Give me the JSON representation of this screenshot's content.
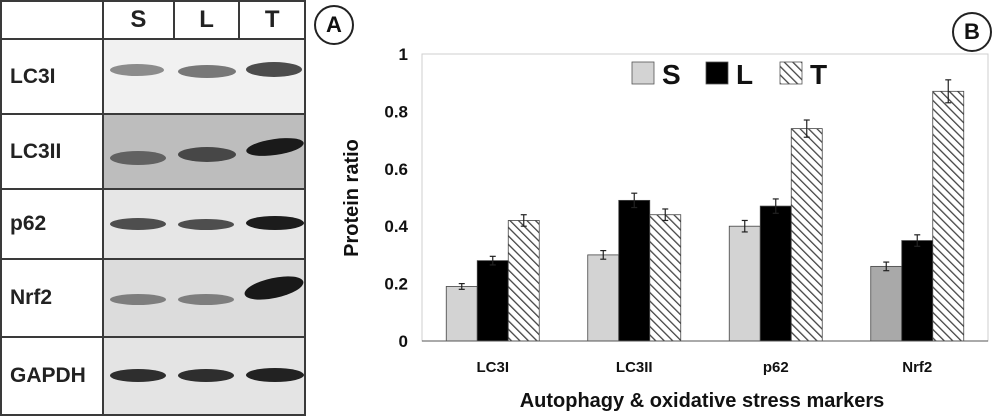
{
  "panel_a": {
    "letter": "A",
    "columns": [
      "S",
      "L",
      "T"
    ],
    "rows": [
      "LC3I",
      "LC3II",
      "p62",
      "Nrf2",
      "GAPDH"
    ]
  },
  "panel_b": {
    "letter": "B"
  },
  "chart_data": {
    "type": "bar",
    "categories": [
      "LC3I",
      "LC3II",
      "p62",
      "Nrf2"
    ],
    "series": [
      {
        "name": "S",
        "values": [
          0.19,
          0.3,
          0.4,
          0.26
        ],
        "errors": [
          0.01,
          0.015,
          0.02,
          0.015
        ],
        "color": "#d3d3d3",
        "fill": "solid"
      },
      {
        "name": "L",
        "values": [
          0.28,
          0.49,
          0.47,
          0.35
        ],
        "errors": [
          0.015,
          0.025,
          0.025,
          0.02
        ],
        "color": "#000000",
        "fill": "solid"
      },
      {
        "name": "T",
        "values": [
          0.42,
          0.44,
          0.74,
          0.87
        ],
        "errors": [
          0.02,
          0.02,
          0.03,
          0.04
        ],
        "color": "#555555",
        "fill": "hatched"
      }
    ],
    "xlabel": "Autophagy & oxidative stress markers",
    "ylabel": "Protein ratio",
    "ylim": [
      0,
      1
    ],
    "yticks": [
      "0",
      "0.2",
      "0.4",
      "0.6",
      "0.8",
      "1"
    ],
    "legend_position": "top-center",
    "grid": false
  }
}
